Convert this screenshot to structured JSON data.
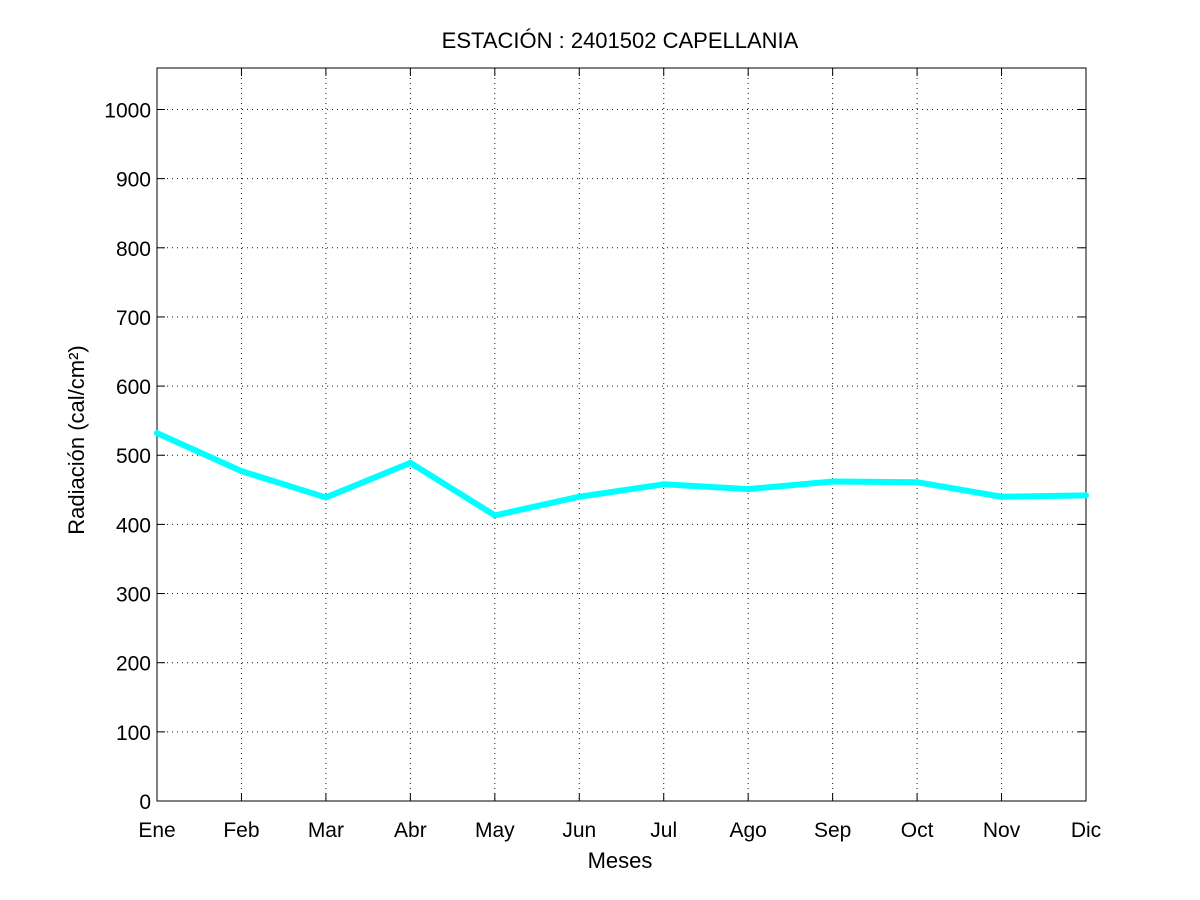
{
  "chart_data": {
    "type": "line",
    "title": "ESTACIÓN :  2401502  CAPELLANIA",
    "xlabel": "Meses",
    "ylabel": "Radiación (cal/cm²)",
    "categories": [
      "Ene",
      "Feb",
      "Mar",
      "Abr",
      "May",
      "Jun",
      "Jul",
      "Ago",
      "Sep",
      "Oct",
      "Nov",
      "Dic"
    ],
    "yticks": [
      0,
      100,
      200,
      300,
      400,
      500,
      600,
      700,
      800,
      900,
      1000
    ],
    "ylim": [
      0,
      1060
    ],
    "grid": true,
    "series": [
      {
        "values": [
          532,
          477,
          439,
          489,
          413,
          440,
          458,
          451,
          462,
          461,
          440,
          442
        ],
        "color": "#00ffff"
      }
    ]
  }
}
